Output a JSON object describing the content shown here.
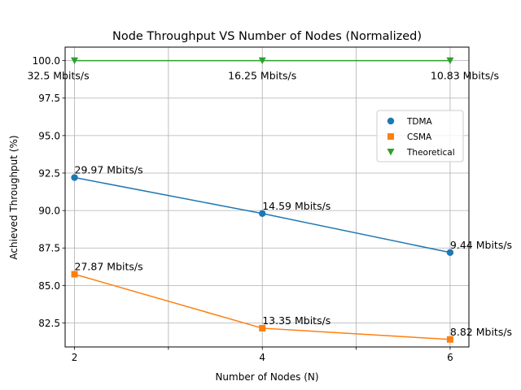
{
  "chart_data": {
    "type": "line",
    "title": "Node Throughput VS Number of Nodes (Normalized)",
    "xlabel": "Number of Nodes (N)",
    "ylabel": "Achieved Throughput (%)",
    "xlim": [
      1.9,
      6.2
    ],
    "ylim": [
      80.9,
      100.9
    ],
    "x": [
      2,
      4,
      6
    ],
    "xticks": [
      2,
      3,
      4,
      5,
      6
    ],
    "xtick_labels": [
      "2",
      "",
      "4",
      "",
      "6"
    ],
    "yticks": [
      82.5,
      85.0,
      87.5,
      90.0,
      92.5,
      95.0,
      97.5,
      100.0
    ],
    "ytick_labels": [
      "82.5",
      "85.0",
      "87.5",
      "90.0",
      "92.5",
      "95.0",
      "97.5",
      "100.0"
    ],
    "grid": true,
    "legend_position": "right",
    "series": [
      {
        "name": "TDMA",
        "color": "#1f77b4",
        "marker": "circle",
        "values": [
          92.2,
          89.8,
          87.2
        ],
        "labels": [
          "29.97 Mbits/s",
          "14.59 Mbits/s",
          "9.44 Mbits/s"
        ]
      },
      {
        "name": "CSMA",
        "color": "#ff7f0e",
        "marker": "square",
        "values": [
          85.75,
          82.15,
          81.4
        ],
        "labels": [
          "27.87 Mbits/s",
          "13.35 Mbits/s",
          "8.82 Mbits/s"
        ]
      },
      {
        "name": "Theoretical",
        "color": "#2ca02c",
        "marker": "triangle-down",
        "values": [
          100.0,
          100.0,
          100.0
        ],
        "labels": [
          "32.5 Mbits/s",
          "16.25 Mbits/s",
          "10.83 Mbits/s"
        ]
      }
    ]
  }
}
